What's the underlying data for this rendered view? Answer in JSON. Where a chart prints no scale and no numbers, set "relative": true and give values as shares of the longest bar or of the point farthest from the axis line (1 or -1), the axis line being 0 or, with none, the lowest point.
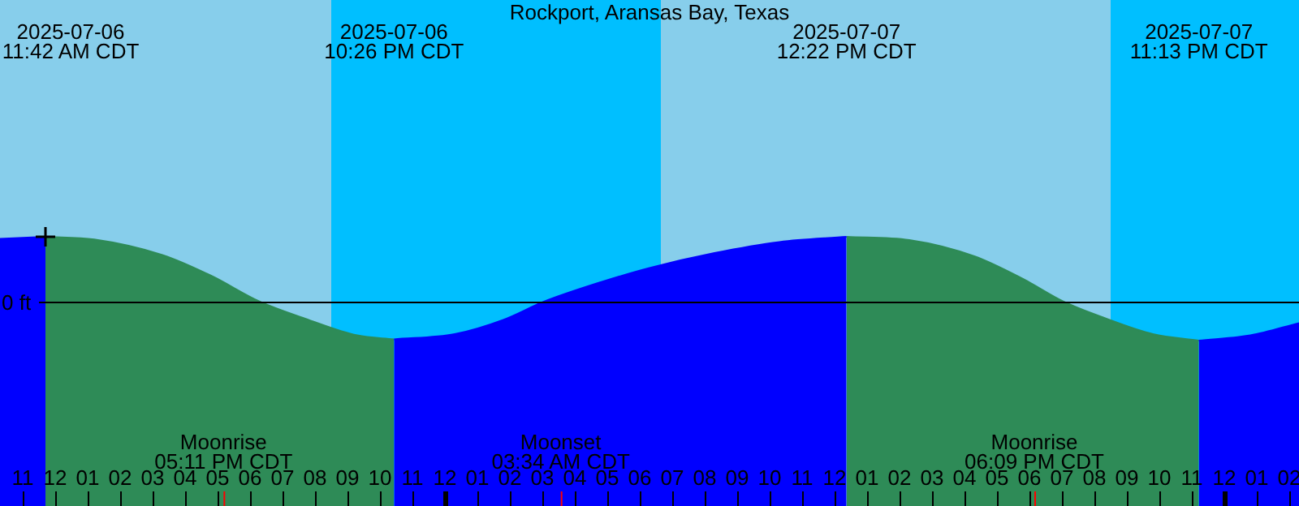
{
  "chart_data": {
    "type": "area",
    "title": "Rockport, Aransas Bay, Texas",
    "relative": true,
    "legend": false,
    "x": [
      "2025-07-06T10:18",
      "2025-07-06T11:42",
      "2025-07-06T13:12",
      "2025-07-06T15:18",
      "2025-07-06T16:48",
      "2025-07-06T18:18",
      "2025-07-06T19:48",
      "2025-07-06T21:18",
      "2025-07-06T22:26",
      "2025-07-07T00:18",
      "2025-07-07T01:48",
      "2025-07-07T03:03",
      "2025-07-07T04:48",
      "2025-07-07T06:18",
      "2025-07-07T08:18",
      "2025-07-07T10:18",
      "2025-07-07T12:22",
      "2025-07-07T14:18",
      "2025-07-07T16:18",
      "2025-07-07T17:48",
      "2025-07-07T19:03",
      "2025-07-07T20:18",
      "2025-07-07T21:48",
      "2025-07-07T23:13",
      "2025-07-08T00:48",
      "2025-07-08T02:18"
    ],
    "series": [
      {
        "color": "#0000ff",
        "values": [
          0.97,
          1,
          null,
          null,
          null,
          null,
          null,
          null,
          -0.58,
          -0.5,
          -0.28,
          0,
          0.3,
          0.52,
          0.75,
          0.92,
          1,
          null,
          null,
          null,
          null,
          null,
          null,
          -0.6,
          -0.52,
          -0.33
        ]
      },
      {
        "color": "#2e8b57",
        "values": [
          null,
          1,
          0.96,
          0.72,
          0.4,
          0,
          -0.28,
          -0.52,
          -0.58,
          null,
          null,
          null,
          null,
          null,
          null,
          null,
          1,
          0.95,
          0.7,
          0.35,
          0,
          -0.25,
          -0.5,
          -0.6,
          null,
          null
        ]
      },
      {
        "type": "scatter",
        "marker": "cross",
        "color": "#000000",
        "x": [
          "2025-07-06T11:42"
        ],
        "values": [
          1
        ]
      }
    ],
    "xlim": [
      "2025-07-06T10:18",
      "2025-07-08T02:18"
    ],
    "xticks": [
      {
        "value": "2025-07-06T11:00",
        "label": "11"
      },
      {
        "value": "2025-07-06T12:00",
        "label": "12"
      },
      {
        "value": "2025-07-06T13:00",
        "label": "01"
      },
      {
        "value": "2025-07-06T14:00",
        "label": "02"
      },
      {
        "value": "2025-07-06T15:00",
        "label": "03"
      },
      {
        "value": "2025-07-06T16:00",
        "label": "04"
      },
      {
        "value": "2025-07-06T17:00",
        "label": "05"
      },
      {
        "value": "2025-07-06T18:00",
        "label": "06"
      },
      {
        "value": "2025-07-06T19:00",
        "label": "07"
      },
      {
        "value": "2025-07-06T20:00",
        "label": "08"
      },
      {
        "value": "2025-07-06T21:00",
        "label": "09"
      },
      {
        "value": "2025-07-06T22:00",
        "label": "10"
      },
      {
        "value": "2025-07-06T23:00",
        "label": "11"
      },
      {
        "value": "2025-07-07T00:00",
        "label": "12"
      },
      {
        "value": "2025-07-07T01:00",
        "label": "01"
      },
      {
        "value": "2025-07-07T02:00",
        "label": "02"
      },
      {
        "value": "2025-07-07T03:00",
        "label": "03"
      },
      {
        "value": "2025-07-07T04:00",
        "label": "04"
      },
      {
        "value": "2025-07-07T05:00",
        "label": "05"
      },
      {
        "value": "2025-07-07T06:00",
        "label": "06"
      },
      {
        "value": "2025-07-07T07:00",
        "label": "07"
      },
      {
        "value": "2025-07-07T08:00",
        "label": "08"
      },
      {
        "value": "2025-07-07T09:00",
        "label": "09"
      },
      {
        "value": "2025-07-07T10:00",
        "label": "10"
      },
      {
        "value": "2025-07-07T11:00",
        "label": "11"
      },
      {
        "value": "2025-07-07T12:00",
        "label": "12"
      },
      {
        "value": "2025-07-07T13:00",
        "label": "01"
      },
      {
        "value": "2025-07-07T14:00",
        "label": "02"
      },
      {
        "value": "2025-07-07T15:00",
        "label": "03"
      },
      {
        "value": "2025-07-07T16:00",
        "label": "04"
      },
      {
        "value": "2025-07-07T17:00",
        "label": "05"
      },
      {
        "value": "2025-07-07T18:00",
        "label": "06"
      },
      {
        "value": "2025-07-07T19:00",
        "label": "07"
      },
      {
        "value": "2025-07-07T20:00",
        "label": "08"
      },
      {
        "value": "2025-07-07T21:00",
        "label": "09"
      },
      {
        "value": "2025-07-07T22:00",
        "label": "10"
      },
      {
        "value": "2025-07-07T23:00",
        "label": "11"
      },
      {
        "value": "2025-07-08T00:00",
        "label": "12"
      },
      {
        "value": "2025-07-08T01:00",
        "label": "01"
      },
      {
        "value": "2025-07-08T02:00",
        "label": "02"
      }
    ],
    "bands": [
      {
        "axis": "x",
        "from": "2025-07-06T10:18",
        "to": "2025-07-06T20:30",
        "color": "#87ceeb"
      },
      {
        "axis": "x",
        "from": "2025-07-06T20:30",
        "to": "2025-07-07T06:39",
        "color": "#00bfff"
      },
      {
        "axis": "x",
        "from": "2025-07-07T06:39",
        "to": "2025-07-07T20:30",
        "color": "#87ceeb"
      },
      {
        "axis": "x",
        "from": "2025-07-07T20:30",
        "to": "2025-07-08T02:18",
        "color": "#00bfff"
      }
    ],
    "ref_lines": [
      {
        "axis": "y",
        "value": 0,
        "label": "0 ft",
        "color": "#000000"
      },
      {
        "axis": "x",
        "value": "2025-07-06T17:11",
        "label": "Moonrise\n05:11 PM CDT",
        "color": "#ff0000"
      },
      {
        "axis": "x",
        "value": "2025-07-07T03:34",
        "label": "Moonset\n03:34 AM CDT",
        "color": "#ff0000"
      },
      {
        "axis": "x",
        "value": "2025-07-07T18:09",
        "label": "Moonrise\n06:09 PM CDT",
        "color": "#ff0000"
      }
    ],
    "annotations": [
      "2025-07-06\n11:42 AM CDT",
      "2025-07-06\n10:26 PM CDT",
      "2025-07-07\n12:22 PM CDT",
      "2025-07-07\n11:13 PM CDT"
    ]
  }
}
